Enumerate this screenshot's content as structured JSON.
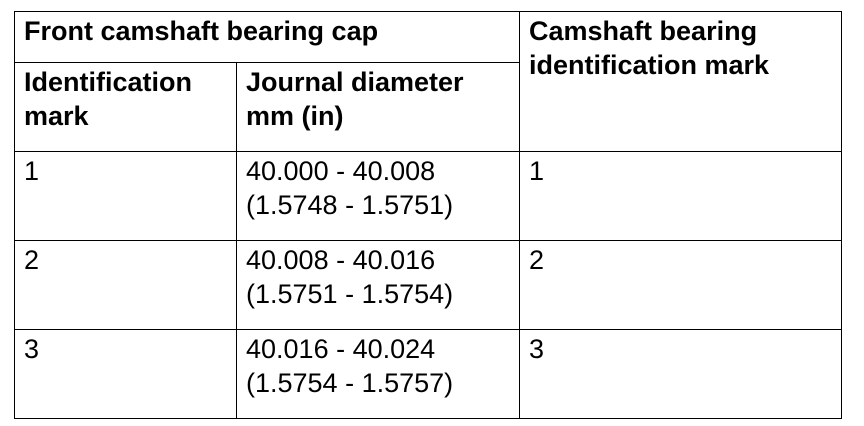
{
  "table": {
    "header": {
      "group_title": "Front camshaft bearing cap",
      "col_mark": [
        "Identification",
        "mark"
      ],
      "col_diameter": [
        "Journal diameter",
        "mm (in)"
      ],
      "col_bearing_mark": [
        "Camshaft bearing",
        "identification mark"
      ]
    },
    "rows": [
      {
        "mark": "1",
        "diameter_mm": "40.000 - 40.008",
        "diameter_in": "(1.5748 - 1.5751)",
        "bearing_mark": "1"
      },
      {
        "mark": "2",
        "diameter_mm": "40.008 - 40.016",
        "diameter_in": "(1.5751 - 1.5754)",
        "bearing_mark": "2"
      },
      {
        "mark": "3",
        "diameter_mm": "40.016 - 40.024",
        "diameter_in": "(1.5754 - 1.5757)",
        "bearing_mark": "3"
      }
    ]
  }
}
